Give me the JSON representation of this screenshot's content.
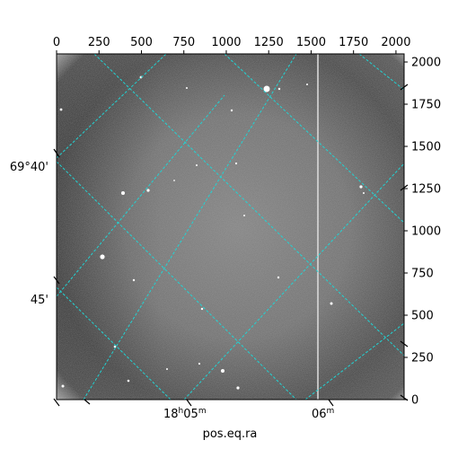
{
  "chart_data": {
    "type": "heatmap",
    "image": {
      "colormap": "grayscale",
      "description_values": "astronomical CCD frame with star field, bright vertical streak column, vignetted corners"
    },
    "pixel_axes": {
      "x": {
        "lim": [
          0,
          2048
        ],
        "ticks": [
          0,
          250,
          500,
          750,
          1000,
          1250,
          1500,
          1750,
          2000
        ]
      },
      "y": {
        "lim": [
          0,
          2048
        ],
        "ticks": [
          0,
          250,
          500,
          750,
          1000,
          1250,
          1500,
          1750,
          2000
        ]
      }
    },
    "world_axes": {
      "xlabel": "pos.eq.ra",
      "ra_ticks": [
        {
          "h": "18",
          "m": "05",
          "label_h": "18",
          "label_m": "05"
        },
        {
          "h": "18",
          "m": "06",
          "label_m": "06"
        }
      ],
      "dec_ticks": [
        {
          "label": "69°40'"
        },
        {
          "label": "45'"
        }
      ]
    },
    "grid": {
      "on": true,
      "color": "#22d3d3",
      "style": "dashed"
    }
  },
  "colors": {
    "grid": "#22d3d3",
    "frame": "#000000"
  }
}
